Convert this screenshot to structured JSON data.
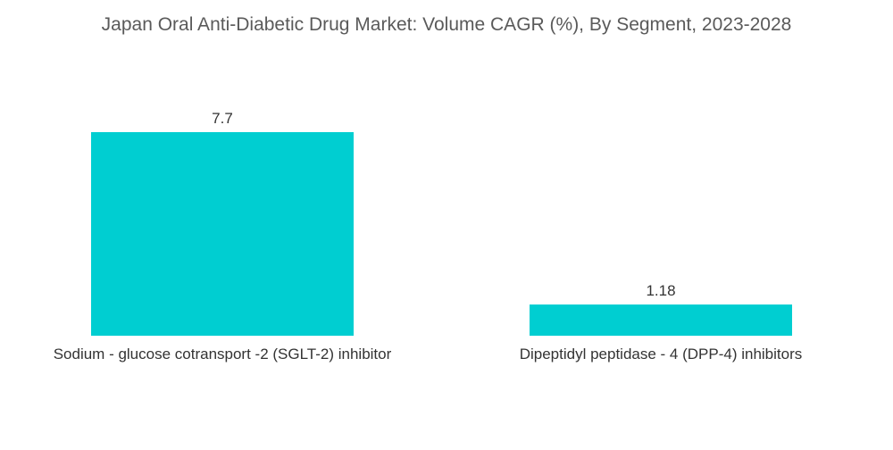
{
  "chart_data": {
    "type": "bar",
    "title": "Japan Oral Anti-Diabetic Drug Market: Volume CAGR (%), By Segment, 2023-2028",
    "categories": [
      "Sodium - glucose cotransport -2 (SGLT-2) inhibitor",
      "Dipeptidyl peptidase - 4 (DPP-4) inhibitors"
    ],
    "values": [
      7.7,
      1.18
    ],
    "value_labels": [
      "7.7",
      "1.18"
    ],
    "xlabel": "",
    "ylabel": "",
    "ylim": [
      0,
      7.7
    ],
    "grid": false,
    "legend": "none",
    "bar_color": "#00CED1"
  }
}
